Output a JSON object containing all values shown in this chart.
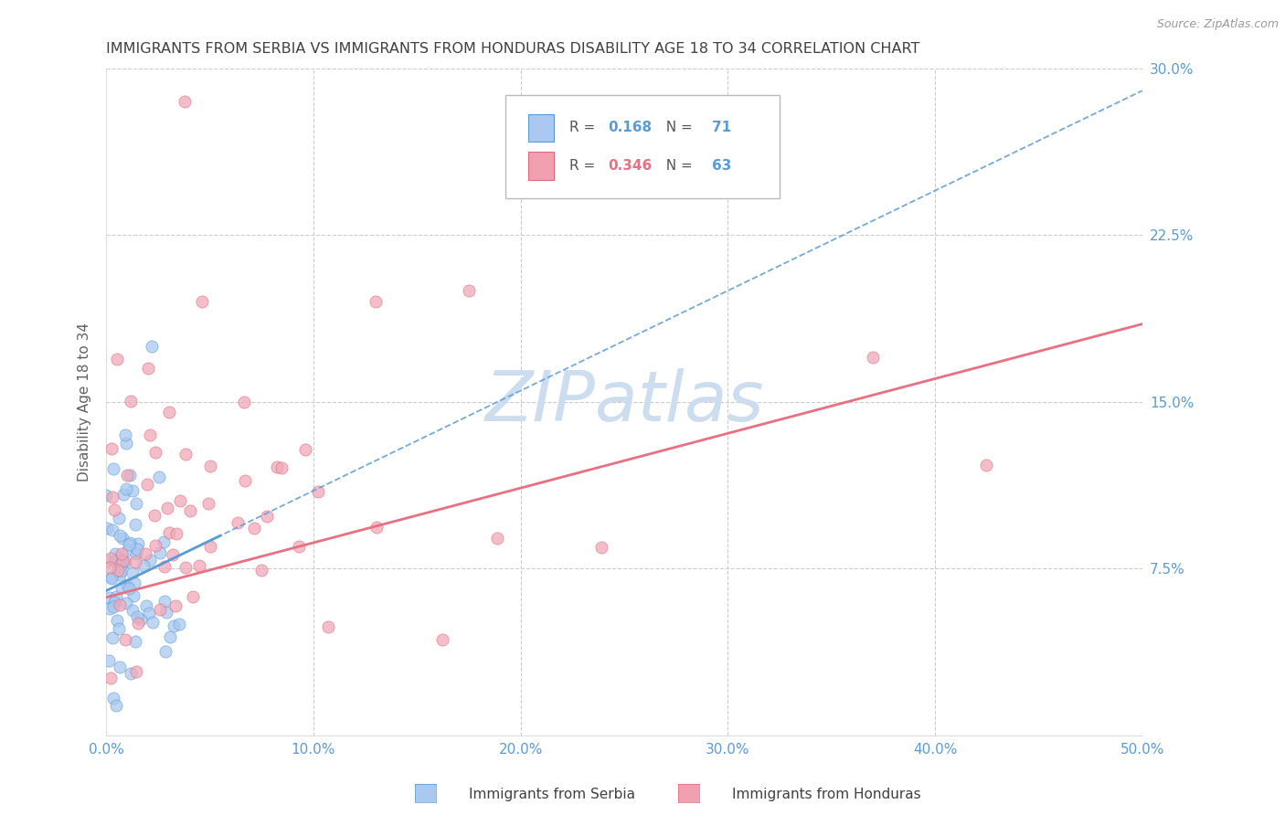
{
  "title": "IMMIGRANTS FROM SERBIA VS IMMIGRANTS FROM HONDURAS DISABILITY AGE 18 TO 34 CORRELATION CHART",
  "source": "Source: ZipAtlas.com",
  "ylabel": "Disability Age 18 to 34",
  "xlim": [
    0.0,
    0.5
  ],
  "ylim": [
    0.0,
    0.3
  ],
  "xticks": [
    0.0,
    0.1,
    0.2,
    0.3,
    0.4,
    0.5
  ],
  "xticklabels": [
    "0.0%",
    "10.0%",
    "20.0%",
    "30.0%",
    "40.0%",
    "50.0%"
  ],
  "yticks": [
    0.0,
    0.075,
    0.15,
    0.225,
    0.3
  ],
  "yticklabels": [
    "",
    "7.5%",
    "15.0%",
    "22.5%",
    "30.0%"
  ],
  "serbia_R": 0.168,
  "serbia_N": 71,
  "honduras_R": 0.346,
  "honduras_N": 63,
  "serbia_scatter_color": "#a8c8f0",
  "serbia_scatter_edge": "#5b9bd5",
  "honduras_scatter_color": "#f0a8b8",
  "honduras_scatter_edge": "#e06878",
  "serbia_line_color": "#5b9bd5",
  "honduras_line_color": "#e87080",
  "watermark_color": "#ccddf0",
  "title_color": "#404040",
  "axis_label_color": "#606060",
  "tick_color": "#5b9bd5",
  "grid_color": "#cccccc",
  "legend_box_serbia_color": "#aac8f0",
  "legend_box_honduras_color": "#f0a0b0",
  "serbia_line_x0": 0.0,
  "serbia_line_y0": 0.065,
  "serbia_line_x1": 0.5,
  "serbia_line_y1": 0.29,
  "honduras_line_x0": 0.0,
  "honduras_line_y0": 0.062,
  "honduras_line_x1": 0.5,
  "honduras_line_y1": 0.185
}
